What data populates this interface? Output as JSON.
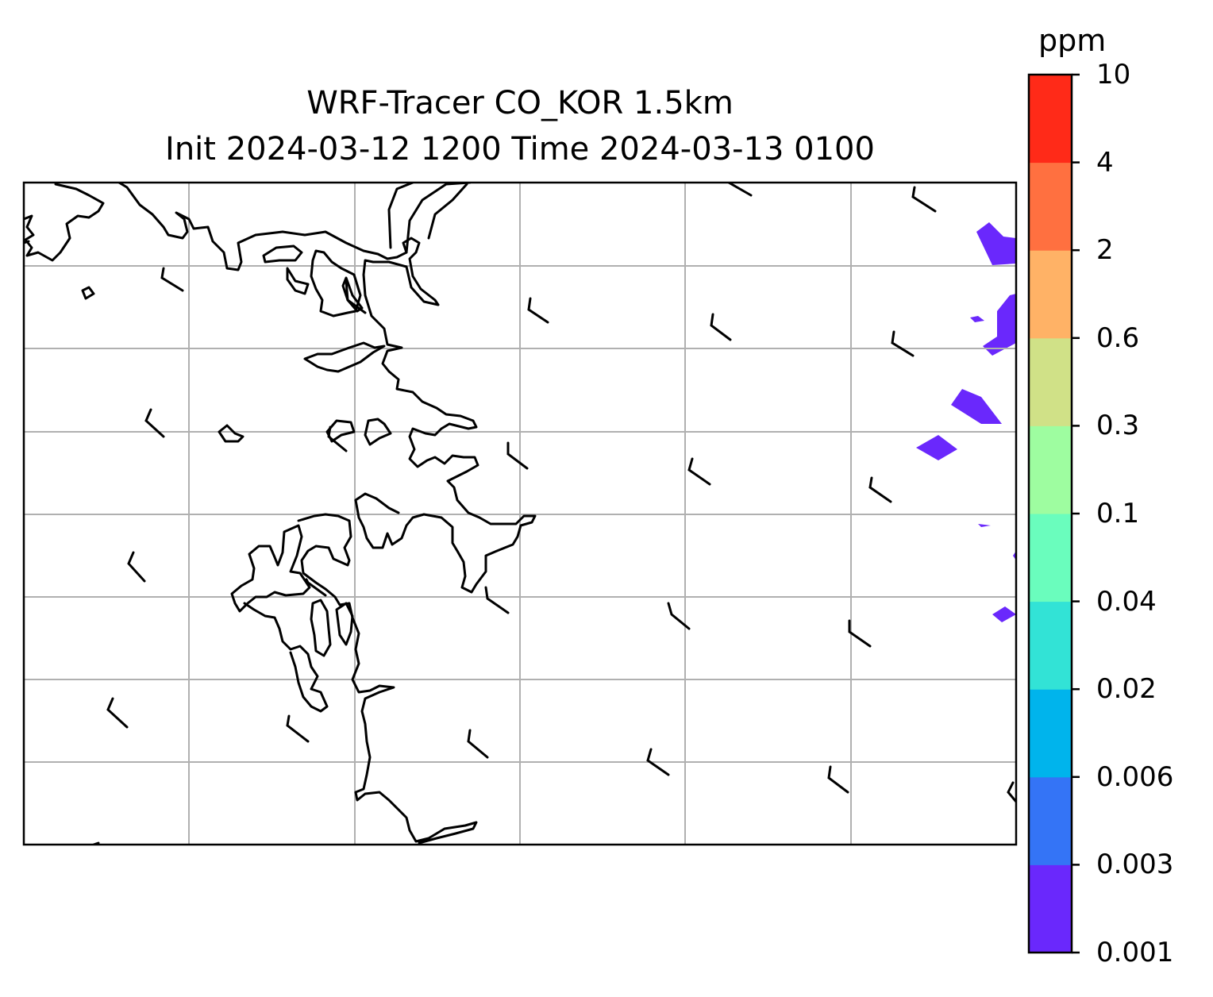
{
  "title": {
    "line1": "WRF-Tracer CO_KOR 1.5km",
    "line2": "Init 2024-03-12 1200 Time 2024-03-13 0100"
  },
  "colorbar": {
    "unit": "ppm",
    "levels": [
      "0.001",
      "0.003",
      "0.006",
      "0.02",
      "0.04",
      "0.1",
      "0.3",
      "0.6",
      "2",
      "4",
      "10"
    ],
    "colors": [
      "#6a28fc",
      "#3474f6",
      "#00b4ec",
      "#32e3d6",
      "#6afdbd",
      "#9efda0",
      "#d0e187",
      "#ffb266",
      "#ff7040",
      "#ff2a18"
    ]
  },
  "map": {
    "gridlines": true,
    "gridline_color": "#b0b0b0",
    "coastline_color": "#000000",
    "tracer_fill_color": "#6a28fc",
    "wind_barbs": "present"
  }
}
